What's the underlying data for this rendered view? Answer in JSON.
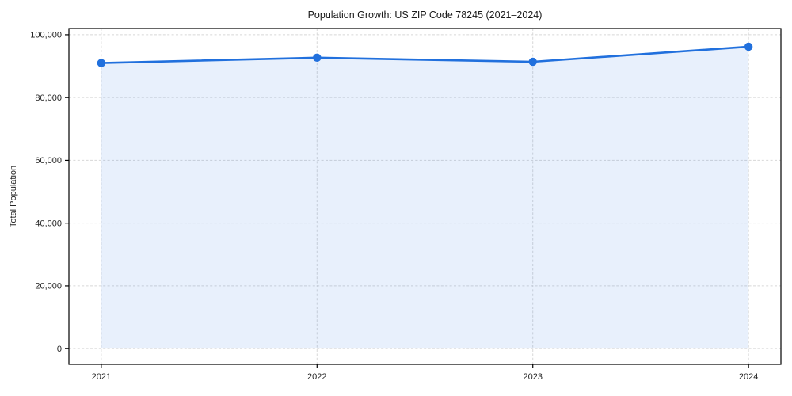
{
  "chart_data": {
    "type": "line",
    "title": "Population Growth: US ZIP Code 78245 (2021–2024)",
    "xlabel": "",
    "ylabel": "Total Population",
    "x": [
      2021,
      2022,
      2023,
      2024
    ],
    "x_tick_labels": [
      "2021",
      "2022",
      "2023",
      "2024"
    ],
    "y_ticks": [
      0,
      20000,
      40000,
      60000,
      80000,
      100000
    ],
    "y_tick_labels": [
      "0",
      "20,000",
      "40,000",
      "60,000",
      "80,000",
      "100,000"
    ],
    "series": [
      {
        "name": "Total Population",
        "values": [
          91000,
          92700,
          91400,
          96200
        ]
      }
    ],
    "xlim": [
      2020.85,
      2024.15
    ],
    "ylim": [
      -5000,
      102000
    ],
    "grid": true,
    "grid_style": "dashed",
    "legend_position": "none",
    "fill_area": true,
    "baseline_value": 0,
    "colors": {
      "line": "#2170dd",
      "marker": "#2170dd",
      "fill": "#2170dd",
      "fill_opacity": 0.1,
      "grid": "#d7d7d7",
      "axis": "#000000",
      "text": "#262626",
      "title": "#1a1a1a",
      "background": "#ffffff"
    }
  }
}
